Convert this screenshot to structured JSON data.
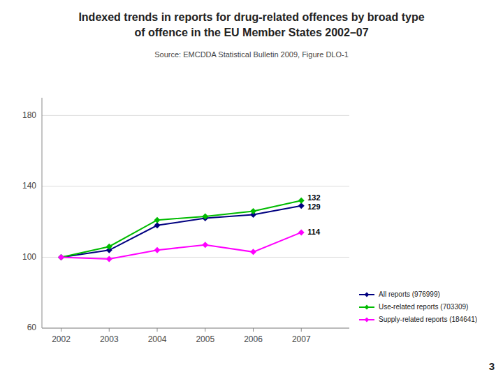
{
  "chart_data": {
    "type": "line",
    "title": [
      "Indexed trends in reports for drug-related offences by broad type",
      "of offence in the EU Member States 2002–07"
    ],
    "subtitle": "Source: EMCDDA Statistical Bulletin 2009, Figure DLO-1",
    "x": [
      2002,
      2003,
      2004,
      2005,
      2006,
      2007
    ],
    "series": [
      {
        "name": "All reports (976999)",
        "color": "#000080",
        "marker": "diamond",
        "values": [
          100,
          104,
          118,
          122,
          124,
          129
        ]
      },
      {
        "name": "Use-related reports (703309)",
        "color": "#00bb00",
        "marker": "diamond",
        "values": [
          100,
          106,
          121,
          123,
          126,
          132
        ]
      },
      {
        "name": "Supply-related reports (184641)",
        "color": "#ff00ff",
        "marker": "diamond",
        "values": [
          100,
          99,
          104,
          107,
          103,
          114
        ]
      }
    ],
    "xlim": [
      2001.6,
      2008.0
    ],
    "xticks": [
      2002,
      2003,
      2004,
      2005,
      2006,
      2007
    ],
    "ylim": [
      60,
      190
    ],
    "yticks": [
      60,
      100,
      140,
      180
    ],
    "grid": true,
    "legend": "lower right",
    "annotations": [
      {
        "text": "132",
        "x": 2007,
        "y": 132
      },
      {
        "text": "129",
        "x": 2007,
        "y": 129
      },
      {
        "text": "114",
        "x": 2007,
        "y": 114
      },
      {
        "text": "3"
      }
    ]
  }
}
